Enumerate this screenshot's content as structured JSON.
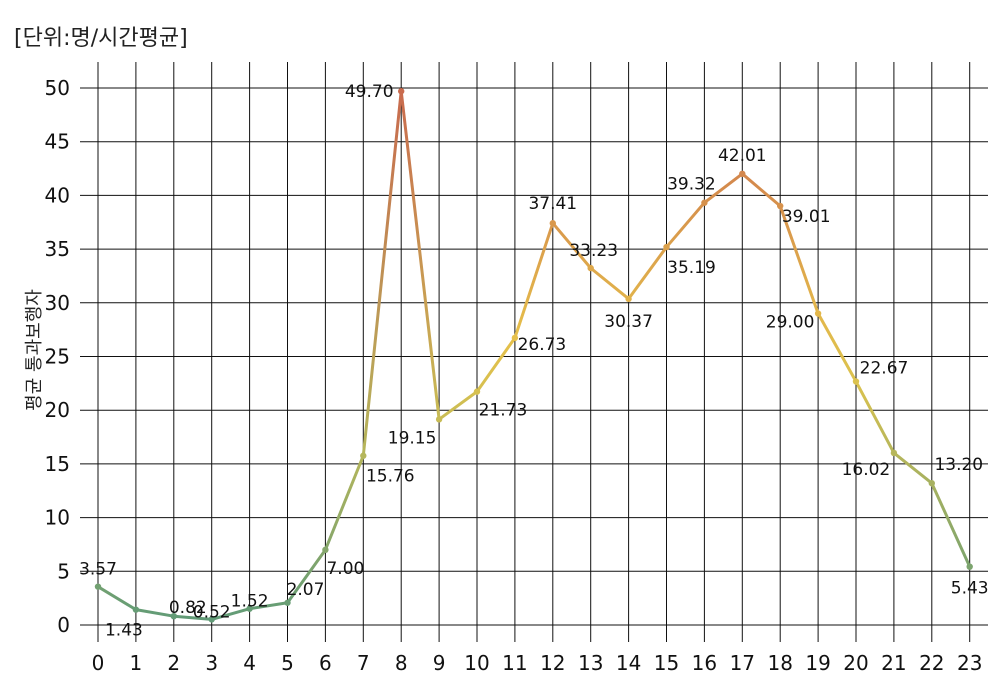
{
  "chart_data": {
    "type": "line",
    "unit_label": "[단위:명/시간평균]",
    "ylabel": "평균 통과보행자",
    "ylim": [
      0,
      50
    ],
    "yticks": [
      0,
      5,
      10,
      15,
      20,
      25,
      30,
      35,
      40,
      45,
      50
    ],
    "grid": true,
    "x": [
      0,
      1,
      2,
      3,
      4,
      5,
      6,
      7,
      8,
      9,
      10,
      11,
      12,
      13,
      14,
      15,
      16,
      17,
      18,
      19,
      20,
      21,
      22,
      23
    ],
    "values": [
      3.57,
      1.43,
      0.82,
      0.52,
      1.52,
      2.07,
      7.0,
      15.76,
      49.7,
      19.15,
      21.73,
      26.73,
      37.41,
      33.23,
      30.37,
      35.19,
      39.32,
      42.01,
      39.01,
      29.0,
      22.67,
      16.02,
      13.2,
      5.43
    ],
    "data_labels": [
      "3.57",
      "1.43",
      "0.82",
      "0.52",
      "1.52",
      "2.07",
      "7.00",
      "15.76",
      "49.70",
      "19.15",
      "21.73",
      "26.73",
      "37.41",
      "33.23",
      "30.37",
      "35.19",
      "39.32",
      "42.01",
      "39.01",
      "29.00",
      "22.67",
      "16.02",
      "13.20",
      "5.43"
    ],
    "colors": {
      "low": "#5e9a78",
      "mid": "#e8c64a",
      "high": "#c96a4e"
    }
  }
}
